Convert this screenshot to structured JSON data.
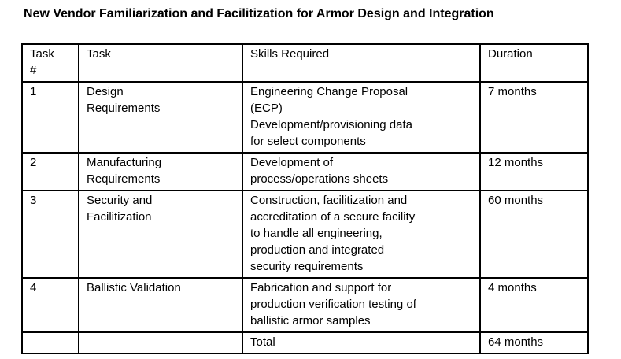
{
  "title": "New Vendor Familiarization and Facilitization for Armor Design and Integration",
  "colors": {
    "text": "#000000",
    "border": "#000000",
    "background": "#ffffff"
  },
  "table": {
    "columns": [
      {
        "label": "Task\n#"
      },
      {
        "label": "Task"
      },
      {
        "label": "Skills Required"
      },
      {
        "label": "Duration"
      }
    ],
    "rows": [
      {
        "task_no": "1",
        "task": "Design\nRequirements",
        "skills": "Engineering Change Proposal\n(ECP)\nDevelopment/provisioning data\nfor select components",
        "duration": "7 months"
      },
      {
        "task_no": "2",
        "task": "Manufacturing\nRequirements",
        "skills": "Development of\nprocess/operations sheets",
        "duration": "12 months"
      },
      {
        "task_no": "3",
        "task": "Security and\nFacilitization",
        "skills": "Construction, facilitization and\naccreditation of a secure facility\nto handle all engineering,\nproduction and integrated\nsecurity requirements",
        "duration": "60 months"
      },
      {
        "task_no": "4",
        "task": "Ballistic Validation",
        "skills": "Fabrication and support for\nproduction verification testing of\nballistic armor samples",
        "duration": "4 months"
      }
    ],
    "total_row": {
      "task_no": "",
      "task": "",
      "label": "Total",
      "duration": "64 months"
    }
  }
}
